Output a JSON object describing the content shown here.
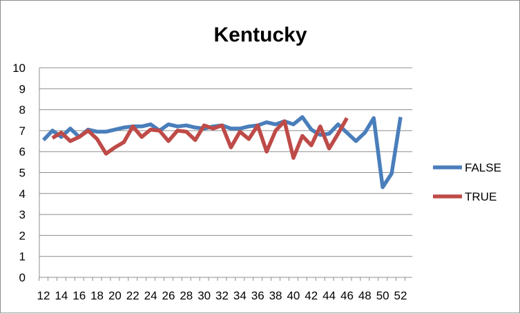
{
  "chart_data": {
    "type": "line",
    "title": "Kentucky",
    "xlabel": "",
    "ylabel": "",
    "x": [
      12,
      13,
      14,
      15,
      16,
      17,
      18,
      19,
      20,
      21,
      22,
      23,
      24,
      25,
      26,
      27,
      28,
      29,
      30,
      31,
      32,
      33,
      34,
      35,
      36,
      37,
      38,
      39,
      40,
      41,
      42,
      43,
      44,
      45,
      46,
      47,
      48,
      49,
      50,
      51,
      52
    ],
    "x_tick_labels": [
      "12",
      "14",
      "16",
      "18",
      "20",
      "22",
      "24",
      "26",
      "28",
      "30",
      "32",
      "34",
      "36",
      "38",
      "40",
      "42",
      "44",
      "46",
      "48",
      "50",
      "52"
    ],
    "y_tick_labels": [
      "0",
      "1",
      "2",
      "3",
      "4",
      "5",
      "6",
      "7",
      "8",
      "9",
      "10"
    ],
    "ylim": [
      0,
      10
    ],
    "xlim": [
      12,
      52
    ],
    "grid": "horizontal",
    "legend_position": "right",
    "series": [
      {
        "name": "FALSE",
        "color": "#4a7ebb",
        "values": [
          6.55,
          7.0,
          6.7,
          7.1,
          6.7,
          7.05,
          6.95,
          6.95,
          7.05,
          7.15,
          7.2,
          7.2,
          7.3,
          7.0,
          7.3,
          7.2,
          7.25,
          7.15,
          7.1,
          7.2,
          7.25,
          7.1,
          7.1,
          7.2,
          7.25,
          7.4,
          7.3,
          7.45,
          7.3,
          7.65,
          7.05,
          6.8,
          6.85,
          7.3,
          6.9,
          6.5,
          6.9,
          7.6,
          4.3,
          4.95,
          7.65
        ]
      },
      {
        "name": "TRUE",
        "color": "#be4b48",
        "values": [
          null,
          6.65,
          6.9,
          6.5,
          6.7,
          7.0,
          6.6,
          5.9,
          6.2,
          6.45,
          7.2,
          6.7,
          7.05,
          7.0,
          6.5,
          7.0,
          6.95,
          6.55,
          7.25,
          7.1,
          7.25,
          6.2,
          6.95,
          6.6,
          7.25,
          6.0,
          7.0,
          7.45,
          5.7,
          6.75,
          6.3,
          7.2,
          6.15,
          6.85,
          7.6,
          null,
          null,
          null,
          null,
          null,
          null
        ]
      }
    ]
  }
}
